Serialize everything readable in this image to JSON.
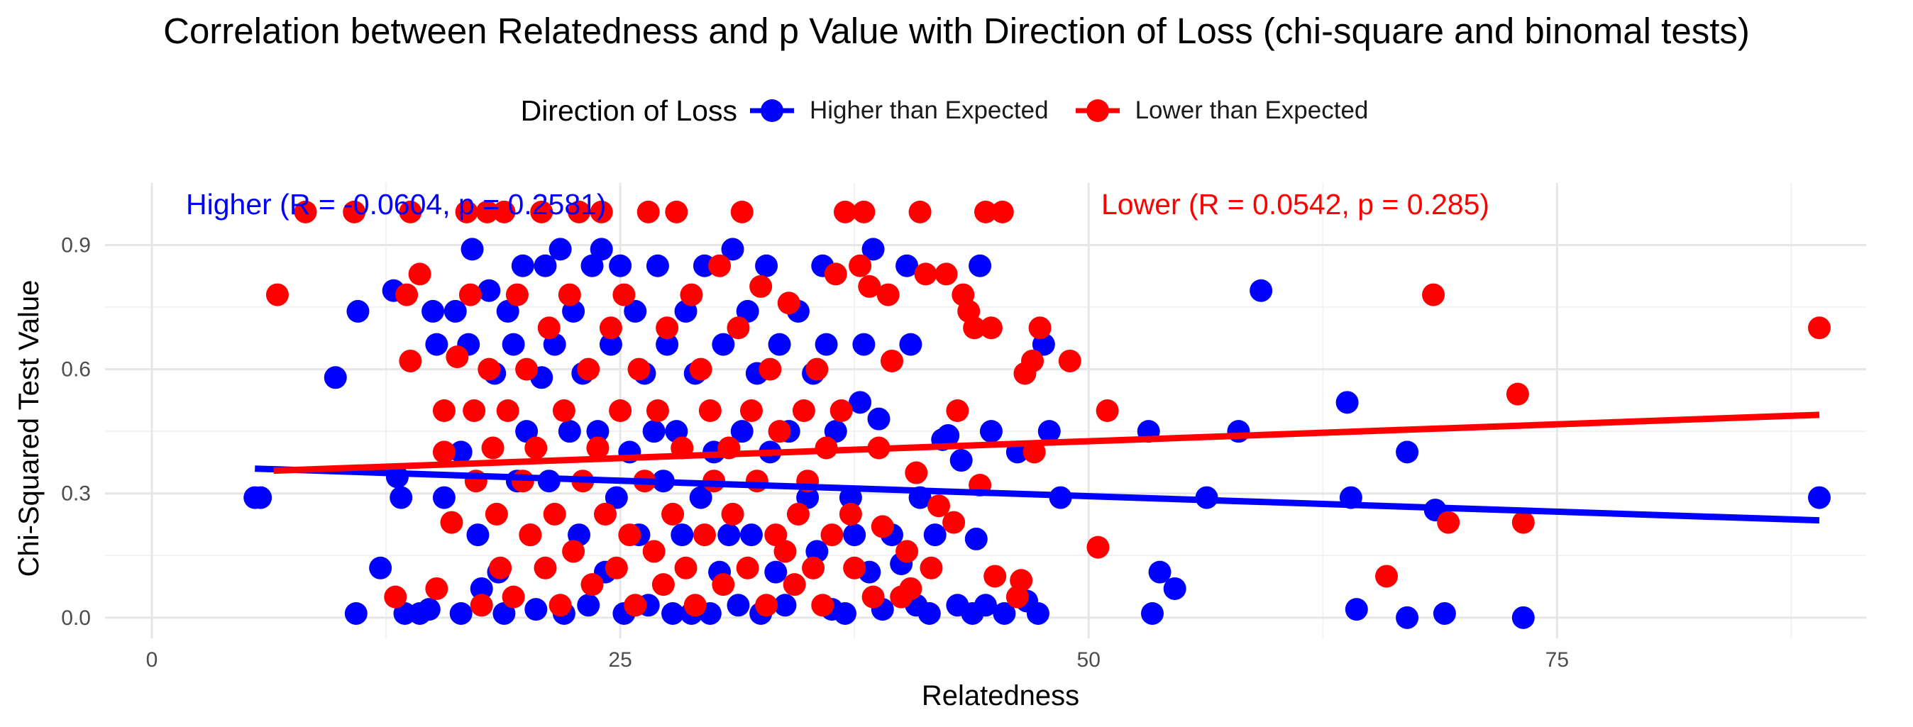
{
  "chart_data": {
    "type": "scatter",
    "title": "Correlation between Relatedness and p Value with Direction of Loss (chi-square and binomal tests)",
    "xlabel": "Relatedness",
    "ylabel": "Chi-Squared Test Value",
    "xlim": [
      -2.5,
      91.5
    ],
    "ylim": [
      -0.05,
      1.05
    ],
    "x_ticks": [
      0,
      25,
      50,
      75
    ],
    "y_ticks": [
      0.0,
      0.3,
      0.6,
      0.9
    ],
    "y_tick_labels": [
      "0.0",
      "0.3",
      "0.6",
      "0.9"
    ],
    "grid": true,
    "legend": {
      "title": "Direction of Loss",
      "position": "top",
      "entries": [
        "Higher than Expected",
        "Lower than Expected"
      ]
    },
    "series": [
      {
        "name": "Higher than Expected",
        "color": "#0000ff",
        "fit_line": [
          [
            5.5,
            0.36
          ],
          [
            89.0,
            0.235
          ]
        ],
        "annotation": "Higher (R = -0.0604, p = 0.2581)",
        "points": [
          [
            5.5,
            0.29
          ],
          [
            5.8,
            0.29
          ],
          [
            9.8,
            0.58
          ],
          [
            11.0,
            0.74
          ],
          [
            10.9,
            0.01
          ],
          [
            12.2,
            0.12
          ],
          [
            12.9,
            0.79
          ],
          [
            13.1,
            0.34
          ],
          [
            13.3,
            0.29
          ],
          [
            13.5,
            0.01
          ],
          [
            14.3,
            0.01
          ],
          [
            14.8,
            0.02
          ],
          [
            15.0,
            0.74
          ],
          [
            15.2,
            0.66
          ],
          [
            15.6,
            0.29
          ],
          [
            16.2,
            0.74
          ],
          [
            16.5,
            0.01
          ],
          [
            16.9,
            0.66
          ],
          [
            16.5,
            0.4
          ],
          [
            17.1,
            0.89
          ],
          [
            17.4,
            0.2
          ],
          [
            17.6,
            0.07
          ],
          [
            18.0,
            0.79
          ],
          [
            18.3,
            0.59
          ],
          [
            18.5,
            0.11
          ],
          [
            18.8,
            0.01
          ],
          [
            19.0,
            0.74
          ],
          [
            19.3,
            0.66
          ],
          [
            19.5,
            0.33
          ],
          [
            19.8,
            0.85
          ],
          [
            20.0,
            0.45
          ],
          [
            20.2,
            0.2
          ],
          [
            20.5,
            0.02
          ],
          [
            20.8,
            0.58
          ],
          [
            21.0,
            0.85
          ],
          [
            21.2,
            0.33
          ],
          [
            21.5,
            0.66
          ],
          [
            21.8,
            0.89
          ],
          [
            22.0,
            0.01
          ],
          [
            22.3,
            0.45
          ],
          [
            22.5,
            0.74
          ],
          [
            22.8,
            0.2
          ],
          [
            23.0,
            0.59
          ],
          [
            23.3,
            0.03
          ],
          [
            23.5,
            0.85
          ],
          [
            23.8,
            0.45
          ],
          [
            24.0,
            0.89
          ],
          [
            24.2,
            0.11
          ],
          [
            24.5,
            0.66
          ],
          [
            24.8,
            0.29
          ],
          [
            25.0,
            0.85
          ],
          [
            25.2,
            0.01
          ],
          [
            25.5,
            0.4
          ],
          [
            25.8,
            0.74
          ],
          [
            26.0,
            0.2
          ],
          [
            26.3,
            0.59
          ],
          [
            26.5,
            0.03
          ],
          [
            26.8,
            0.45
          ],
          [
            27.0,
            0.85
          ],
          [
            27.3,
            0.33
          ],
          [
            27.5,
            0.66
          ],
          [
            27.8,
            0.01
          ],
          [
            28.0,
            0.45
          ],
          [
            28.3,
            0.2
          ],
          [
            28.5,
            0.74
          ],
          [
            28.8,
            0.01
          ],
          [
            29.0,
            0.59
          ],
          [
            29.3,
            0.29
          ],
          [
            29.5,
            0.85
          ],
          [
            29.8,
            0.01
          ],
          [
            30.0,
            0.4
          ],
          [
            30.3,
            0.11
          ],
          [
            30.5,
            0.66
          ],
          [
            30.8,
            0.2
          ],
          [
            31.0,
            0.89
          ],
          [
            31.3,
            0.03
          ],
          [
            31.5,
            0.45
          ],
          [
            31.8,
            0.74
          ],
          [
            32.0,
            0.2
          ],
          [
            32.3,
            0.59
          ],
          [
            32.5,
            0.01
          ],
          [
            32.8,
            0.85
          ],
          [
            33.0,
            0.4
          ],
          [
            33.3,
            0.11
          ],
          [
            33.5,
            0.66
          ],
          [
            33.8,
            0.03
          ],
          [
            34.0,
            0.45
          ],
          [
            34.5,
            0.74
          ],
          [
            35.0,
            0.29
          ],
          [
            35.3,
            0.59
          ],
          [
            35.5,
            0.16
          ],
          [
            35.8,
            0.85
          ],
          [
            36.0,
            0.66
          ],
          [
            36.3,
            0.02
          ],
          [
            36.5,
            0.45
          ],
          [
            37.0,
            0.01
          ],
          [
            37.3,
            0.29
          ],
          [
            37.5,
            0.2
          ],
          [
            37.8,
            0.52
          ],
          [
            38.0,
            0.66
          ],
          [
            38.3,
            0.11
          ],
          [
            38.5,
            0.89
          ],
          [
            38.8,
            0.48
          ],
          [
            39.0,
            0.02
          ],
          [
            39.5,
            0.2
          ],
          [
            40.0,
            0.13
          ],
          [
            40.3,
            0.85
          ],
          [
            40.5,
            0.66
          ],
          [
            40.8,
            0.03
          ],
          [
            41.0,
            0.29
          ],
          [
            41.5,
            0.01
          ],
          [
            41.8,
            0.2
          ],
          [
            42.2,
            0.43
          ],
          [
            42.5,
            0.44
          ],
          [
            43.0,
            0.03
          ],
          [
            43.2,
            0.38
          ],
          [
            43.8,
            0.01
          ],
          [
            44.0,
            0.19
          ],
          [
            44.2,
            0.85
          ],
          [
            44.5,
            0.03
          ],
          [
            44.8,
            0.45
          ],
          [
            45.5,
            0.01
          ],
          [
            46.2,
            0.4
          ],
          [
            46.7,
            0.04
          ],
          [
            47.3,
            0.01
          ],
          [
            47.6,
            0.66
          ],
          [
            47.9,
            0.45
          ],
          [
            48.5,
            0.29
          ],
          [
            53.2,
            0.45
          ],
          [
            53.4,
            0.01
          ],
          [
            53.8,
            0.11
          ],
          [
            54.6,
            0.07
          ],
          [
            56.3,
            0.29
          ],
          [
            58.0,
            0.45
          ],
          [
            59.2,
            0.79
          ],
          [
            63.8,
            0.52
          ],
          [
            64.0,
            0.29
          ],
          [
            64.3,
            0.02
          ],
          [
            67.0,
            0.4
          ],
          [
            67.0,
            0.0
          ],
          [
            68.5,
            0.26
          ],
          [
            69.0,
            0.01
          ],
          [
            73.2,
            0.0
          ],
          [
            89.0,
            0.29
          ]
        ]
      },
      {
        "name": "Lower than Expected",
        "color": "#ff0000",
        "fit_line": [
          [
            6.5,
            0.355
          ],
          [
            89.0,
            0.49
          ]
        ],
        "annotation": "Lower (R = 0.0542, p = 0.285)",
        "points": [
          [
            6.7,
            0.78
          ],
          [
            8.2,
            0.98
          ],
          [
            10.8,
            0.98
          ],
          [
            13.0,
            0.05
          ],
          [
            13.6,
            0.78
          ],
          [
            13.8,
            0.98
          ],
          [
            14.3,
            0.83
          ],
          [
            13.8,
            0.62
          ],
          [
            15.2,
            0.07
          ],
          [
            15.6,
            0.5
          ],
          [
            15.6,
            0.4
          ],
          [
            16.0,
            0.23
          ],
          [
            16.3,
            0.63
          ],
          [
            16.8,
            0.98
          ],
          [
            17.0,
            0.78
          ],
          [
            17.2,
            0.5
          ],
          [
            17.3,
            0.33
          ],
          [
            17.6,
            0.03
          ],
          [
            17.9,
            0.98
          ],
          [
            18.0,
            0.6
          ],
          [
            18.2,
            0.41
          ],
          [
            18.4,
            0.25
          ],
          [
            18.6,
            0.12
          ],
          [
            18.8,
            0.98
          ],
          [
            19.0,
            0.5
          ],
          [
            19.3,
            0.05
          ],
          [
            19.5,
            0.78
          ],
          [
            19.8,
            0.33
          ],
          [
            20.0,
            0.6
          ],
          [
            20.2,
            0.2
          ],
          [
            20.5,
            0.41
          ],
          [
            20.8,
            0.98
          ],
          [
            21.0,
            0.12
          ],
          [
            21.2,
            0.7
          ],
          [
            21.5,
            0.25
          ],
          [
            21.8,
            0.03
          ],
          [
            22.0,
            0.5
          ],
          [
            22.3,
            0.78
          ],
          [
            22.5,
            0.16
          ],
          [
            22.8,
            0.98
          ],
          [
            23.0,
            0.33
          ],
          [
            23.3,
            0.6
          ],
          [
            23.5,
            0.08
          ],
          [
            23.8,
            0.41
          ],
          [
            24.0,
            0.98
          ],
          [
            24.2,
            0.25
          ],
          [
            24.5,
            0.7
          ],
          [
            24.8,
            0.12
          ],
          [
            25.0,
            0.5
          ],
          [
            25.2,
            0.78
          ],
          [
            25.5,
            0.2
          ],
          [
            25.8,
            0.03
          ],
          [
            26.0,
            0.6
          ],
          [
            26.3,
            0.33
          ],
          [
            26.5,
            0.98
          ],
          [
            26.8,
            0.16
          ],
          [
            27.0,
            0.5
          ],
          [
            27.3,
            0.08
          ],
          [
            27.5,
            0.7
          ],
          [
            27.8,
            0.25
          ],
          [
            28.0,
            0.98
          ],
          [
            28.3,
            0.41
          ],
          [
            28.5,
            0.12
          ],
          [
            28.8,
            0.78
          ],
          [
            29.0,
            0.03
          ],
          [
            29.3,
            0.6
          ],
          [
            29.5,
            0.2
          ],
          [
            29.8,
            0.5
          ],
          [
            30.0,
            0.33
          ],
          [
            30.3,
            0.85
          ],
          [
            30.5,
            0.08
          ],
          [
            30.8,
            0.41
          ],
          [
            31.0,
            0.25
          ],
          [
            31.3,
            0.7
          ],
          [
            31.5,
            0.98
          ],
          [
            31.8,
            0.12
          ],
          [
            32.0,
            0.5
          ],
          [
            32.3,
            0.33
          ],
          [
            32.5,
            0.8
          ],
          [
            32.8,
            0.03
          ],
          [
            33.0,
            0.6
          ],
          [
            33.3,
            0.2
          ],
          [
            33.5,
            0.45
          ],
          [
            33.8,
            0.16
          ],
          [
            34.0,
            0.76
          ],
          [
            34.3,
            0.08
          ],
          [
            34.5,
            0.25
          ],
          [
            34.8,
            0.5
          ],
          [
            35.0,
            0.33
          ],
          [
            35.3,
            0.12
          ],
          [
            35.5,
            0.6
          ],
          [
            35.8,
            0.03
          ],
          [
            36.0,
            0.41
          ],
          [
            36.3,
            0.2
          ],
          [
            36.5,
            0.83
          ],
          [
            36.8,
            0.5
          ],
          [
            37.0,
            0.98
          ],
          [
            37.3,
            0.25
          ],
          [
            37.5,
            0.12
          ],
          [
            37.8,
            0.85
          ],
          [
            38.0,
            0.98
          ],
          [
            38.3,
            0.8
          ],
          [
            38.5,
            0.05
          ],
          [
            38.8,
            0.41
          ],
          [
            39.0,
            0.22
          ],
          [
            39.3,
            0.78
          ],
          [
            39.5,
            0.62
          ],
          [
            40.0,
            0.05
          ],
          [
            40.3,
            0.16
          ],
          [
            40.5,
            0.07
          ],
          [
            40.8,
            0.35
          ],
          [
            41.0,
            0.98
          ],
          [
            41.3,
            0.83
          ],
          [
            41.6,
            0.12
          ],
          [
            42.0,
            0.27
          ],
          [
            42.4,
            0.83
          ],
          [
            42.8,
            0.23
          ],
          [
            43.0,
            0.5
          ],
          [
            43.3,
            0.78
          ],
          [
            43.6,
            0.74
          ],
          [
            43.9,
            0.7
          ],
          [
            44.2,
            0.32
          ],
          [
            44.5,
            0.98
          ],
          [
            44.8,
            0.7
          ],
          [
            45.0,
            0.1
          ],
          [
            45.4,
            0.98
          ],
          [
            46.2,
            0.05
          ],
          [
            46.4,
            0.09
          ],
          [
            46.6,
            0.59
          ],
          [
            47.0,
            0.62
          ],
          [
            47.4,
            0.7
          ],
          [
            47.1,
            0.4
          ],
          [
            49.0,
            0.62
          ],
          [
            50.5,
            0.17
          ],
          [
            51.0,
            0.5
          ],
          [
            65.9,
            0.1
          ],
          [
            68.4,
            0.78
          ],
          [
            69.2,
            0.23
          ],
          [
            72.9,
            0.54
          ],
          [
            73.2,
            0.23
          ],
          [
            89.0,
            0.7
          ]
        ]
      }
    ]
  }
}
